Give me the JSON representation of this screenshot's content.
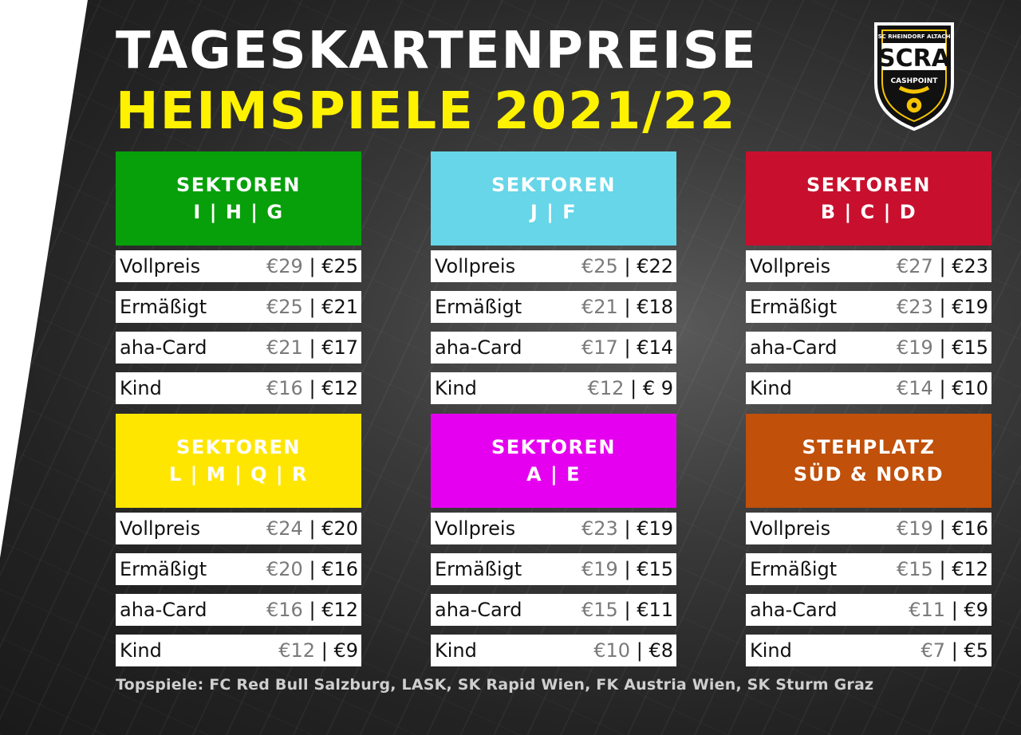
{
  "title_line1": "TAGESKARTENPREISE",
  "title_line2": "HEIMSPIELE 2021/22",
  "logo": {
    "arc_text": "SC RHEINDORF ALTACH",
    "letters": "SCRA",
    "sponsor": "CASHPOINT",
    "colors": {
      "shield": "#111111",
      "gold": "#f5c400",
      "white": "#ffffff"
    }
  },
  "sections": [
    {
      "header_line1": "SEKTOREN",
      "header_line2": "I | H | G",
      "color": "#07a00b",
      "rows": [
        {
          "label": "Vollpreis",
          "full": "€29",
          "reduced": "€25"
        },
        {
          "label": "Ermäßigt",
          "full": "€25",
          "reduced": "€21"
        },
        {
          "label": "aha-Card",
          "full": "€21",
          "reduced": "€17"
        },
        {
          "label": "Kind",
          "full": "€16",
          "reduced": "€12"
        }
      ]
    },
    {
      "header_line1": "SEKTOREN",
      "header_line2": "J | F",
      "color": "#66d6e8",
      "rows": [
        {
          "label": "Vollpreis",
          "full": "€25",
          "reduced": "€22"
        },
        {
          "label": "Ermäßigt",
          "full": "€21",
          "reduced": "€18"
        },
        {
          "label": "aha-Card",
          "full": "€17",
          "reduced": "€14"
        },
        {
          "label": "Kind",
          "full": "€12",
          "reduced": "€ 9"
        }
      ]
    },
    {
      "header_line1": "SEKTOREN",
      "header_line2": "B | C | D",
      "color": "#c8102e",
      "rows": [
        {
          "label": "Vollpreis",
          "full": "€27",
          "reduced": "€23"
        },
        {
          "label": "Ermäßigt",
          "full": "€23",
          "reduced": "€19"
        },
        {
          "label": "aha-Card",
          "full": "€19",
          "reduced": "€15"
        },
        {
          "label": "Kind",
          "full": "€14",
          "reduced": "€10"
        }
      ]
    },
    {
      "header_line1": "SEKTOREN",
      "header_line2": "L | M | Q | R",
      "color": "#ffe600",
      "rows": [
        {
          "label": "Vollpreis",
          "full": "€24",
          "reduced": "€20"
        },
        {
          "label": "Ermäßigt",
          "full": "€20",
          "reduced": "€16"
        },
        {
          "label": "aha-Card",
          "full": "€16",
          "reduced": "€12"
        },
        {
          "label": "Kind",
          "full": "€12",
          "reduced": "€9"
        }
      ]
    },
    {
      "header_line1": "SEKTOREN",
      "header_line2": "A | E",
      "color": "#e600f0",
      "rows": [
        {
          "label": "Vollpreis",
          "full": "€23",
          "reduced": "€19"
        },
        {
          "label": "Ermäßigt",
          "full": "€19",
          "reduced": "€15"
        },
        {
          "label": "aha-Card",
          "full": "€15",
          "reduced": "€11"
        },
        {
          "label": "Kind",
          "full": "€10",
          "reduced": "€8"
        }
      ]
    },
    {
      "header_line1": "STEHPLATZ",
      "header_line2": "SÜD & NORD",
      "color": "#c0500a",
      "rows": [
        {
          "label": "Vollpreis",
          "full": "€19",
          "reduced": "€16"
        },
        {
          "label": "Ermäßigt",
          "full": "€15",
          "reduced": "€12"
        },
        {
          "label": "aha-Card",
          "full": "€11",
          "reduced": "€9"
        },
        {
          "label": "Kind",
          "full": "€7",
          "reduced": "€5"
        }
      ]
    }
  ],
  "price_separator": "|",
  "footer": "Topspiele: FC Red Bull Salzburg, LASK, SK Rapid Wien, FK Austria Wien, SK Sturm Graz"
}
